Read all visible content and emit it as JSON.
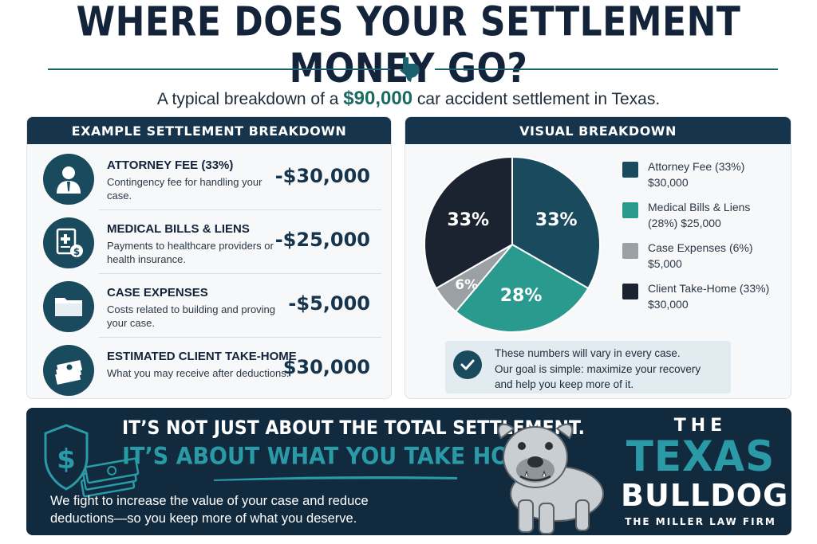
{
  "header": {
    "title": "WHERE DOES YOUR SETTLEMENT MONEY GO?",
    "subtitle_pre": "A typical breakdown of a ",
    "subtitle_amount": "$90,000",
    "subtitle_post": " car accident settlement in Texas."
  },
  "breakdown": {
    "heading": "EXAMPLE SETTLEMENT BREAKDOWN",
    "items": [
      {
        "title": "ATTORNEY FEE (33%)",
        "desc": "Contingency fee for handling your case.",
        "amount": "-$30,000",
        "icon": "attorney-icon"
      },
      {
        "title": "MEDICAL BILLS & LIENS",
        "desc": "Payments to healthcare providers or health insurance.",
        "amount": "-$25,000",
        "icon": "medical-bill-icon"
      },
      {
        "title": "CASE EXPENSES",
        "desc": "Costs related to building and proving your case.",
        "amount": "-$5,000",
        "icon": "folder-icon"
      },
      {
        "title": "ESTIMATED CLIENT TAKE-HOME",
        "desc": "What you may receive after deductions.",
        "amount": "$30,000",
        "icon": "cash-icon"
      }
    ]
  },
  "visual": {
    "heading": "VISUAL BREAKDOWN",
    "note_lines": [
      "These numbers will vary in every case.",
      "Our goal is simple: maximize your recovery",
      "and help you keep more of it."
    ]
  },
  "chart_data": {
    "type": "pie",
    "slices": [
      {
        "name": "Attorney Fee (33%)",
        "value": 30000,
        "label": "33%",
        "amount": "$30,000",
        "color": "#1a4a5e"
      },
      {
        "name": "Medical Bills & Liens (28%)",
        "value": 25000,
        "label": "28%",
        "amount": "$25,000",
        "color": "#2a9a8e"
      },
      {
        "name": "Case Expenses (6%)",
        "value": 5000,
        "label": "6%",
        "amount": "$5,000",
        "color": "#9aa0a4"
      },
      {
        "name": "Client Take-Home (33%)",
        "value": 30000,
        "label": "33%",
        "amount": "$30,000",
        "color": "#1b2330"
      }
    ],
    "legend": [
      {
        "lines": [
          "Attorney Fee (33%)",
          "$30,000"
        ]
      },
      {
        "lines": [
          "Medical Bills & Liens",
          "(28%)  $25,000"
        ]
      },
      {
        "lines": [
          "Case Expenses (6%)",
          "$5,000"
        ]
      },
      {
        "lines": [
          "Client Take-Home (33%)",
          "$30,000"
        ]
      }
    ],
    "legend_position": "right"
  },
  "banner": {
    "line1": "IT’S NOT JUST ABOUT THE TOTAL SETTLEMENT.",
    "line2": "IT’S ABOUT WHAT YOU TAKE HOME.",
    "body": "We fight to increase the value of your case and reduce deductions—so you keep more of what you deserve."
  },
  "brand": {
    "the": "THE",
    "texas": "TEXAS",
    "bulldog": "BULLDOG",
    "firm": "THE MILLER LAW FIRM"
  },
  "colors": {
    "navy": "#16354d",
    "teal": "#2a9a8e",
    "dark": "#1b2330",
    "gray": "#9aa0a4",
    "accent_text": "#1b6b62"
  }
}
